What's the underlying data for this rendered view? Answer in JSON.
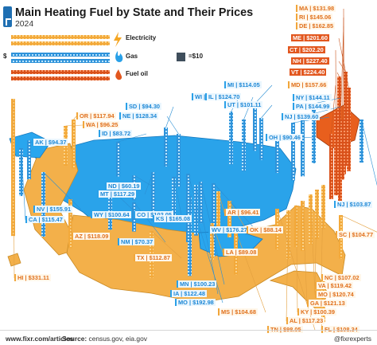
{
  "header": {
    "title": "Main Heating Fuel by State and Their Prices",
    "subtitle": "2024"
  },
  "legend": {
    "electricity": "Electricity",
    "gas": "Gas",
    "fuel_oil": "Fuel oil",
    "unit_prefix": "$",
    "unit_value": "=$10"
  },
  "colors": {
    "electricity": "#f5a623",
    "gas": "#2aa3ea",
    "fuel_oil": "#e2571f",
    "electricity_state": "#f2b84b",
    "gas_state": "#29a6ee",
    "fuel_oil_state": "#e85f1d"
  },
  "labels": [
    {
      "id": "MA",
      "text": "MA | $131.98"
    },
    {
      "id": "RI",
      "text": "RI | $145.06"
    },
    {
      "id": "DE",
      "text": "DE | $162.85"
    },
    {
      "id": "ME",
      "text": "ME | $201.60"
    },
    {
      "id": "CT",
      "text": "CT | $202.20"
    },
    {
      "id": "NH",
      "text": "NH | $227.40"
    },
    {
      "id": "VT",
      "text": "VT | $224.40"
    },
    {
      "id": "MD",
      "text": "MD | $157.66"
    },
    {
      "id": "MI",
      "text": "MI | $114.05"
    },
    {
      "id": "WI",
      "text": "WI | $127.80"
    },
    {
      "id": "IL",
      "text": "IL | $124.70"
    },
    {
      "id": "UT",
      "text": "UT | $101.11"
    },
    {
      "id": "SD",
      "text": "SD | $94.30"
    },
    {
      "id": "NE",
      "text": "NE | $128.34"
    },
    {
      "id": "NY",
      "text": "NY | $144.11"
    },
    {
      "id": "PA",
      "text": "PA | $144.99"
    },
    {
      "id": "NJ2",
      "text": "NJ | $139.60"
    },
    {
      "id": "OH",
      "text": "OH | $90.46"
    },
    {
      "id": "OR",
      "text": "OR | $117.94"
    },
    {
      "id": "WA",
      "text": "WA | $96.25"
    },
    {
      "id": "ID",
      "text": "ID | $83.72"
    },
    {
      "id": "AK",
      "text": "AK | $94.37"
    },
    {
      "id": "ND",
      "text": "ND | $60.19"
    },
    {
      "id": "MT",
      "text": "MT | $117.29"
    },
    {
      "id": "NV",
      "text": "NV | $155.91"
    },
    {
      "id": "WY",
      "text": "WY | $100.64"
    },
    {
      "id": "CA",
      "text": "CA | $115.47"
    },
    {
      "id": "CO",
      "text": "CO | $102.05"
    },
    {
      "id": "KS",
      "text": "KS | $165.08"
    },
    {
      "id": "WV",
      "text": "WV | $176.27"
    },
    {
      "id": "AR",
      "text": "AR | $96.41"
    },
    {
      "id": "AZ",
      "text": "AZ | $118.09"
    },
    {
      "id": "NM",
      "text": "NM | $70.37"
    },
    {
      "id": "OK",
      "text": "OK | $88.14"
    },
    {
      "id": "LA",
      "text": "LA | $89.08"
    },
    {
      "id": "TX",
      "text": "TX | $112.87"
    },
    {
      "id": "NJ",
      "text": "NJ | $103.87"
    },
    {
      "id": "SC",
      "text": "SC | $104.77"
    },
    {
      "id": "NC",
      "text": "NC | $107.02"
    },
    {
      "id": "VA",
      "text": "VA | $119.42"
    },
    {
      "id": "MO2",
      "text": "MO | $120.74"
    },
    {
      "id": "GA",
      "text": "GA | $121.13"
    },
    {
      "id": "KY",
      "text": "KY | $100.39"
    },
    {
      "id": "AL",
      "text": "AL | $117.23"
    },
    {
      "id": "TN",
      "text": "TN | $98.05"
    },
    {
      "id": "FL",
      "text": "FL | $108.34"
    },
    {
      "id": "MN",
      "text": "MN | $100.23"
    },
    {
      "id": "IA",
      "text": "IA | $122.48"
    },
    {
      "id": "MO",
      "text": "MO | $192.98"
    },
    {
      "id": "MS",
      "text": "MS | $104.68"
    },
    {
      "id": "HI",
      "text": "HI | $331.11"
    }
  ],
  "footer": {
    "site": "www.fixr.com/articles",
    "source_label": "Source:",
    "source_text": "census.gov, eia.gov",
    "handle": "@fixrexperts"
  }
}
